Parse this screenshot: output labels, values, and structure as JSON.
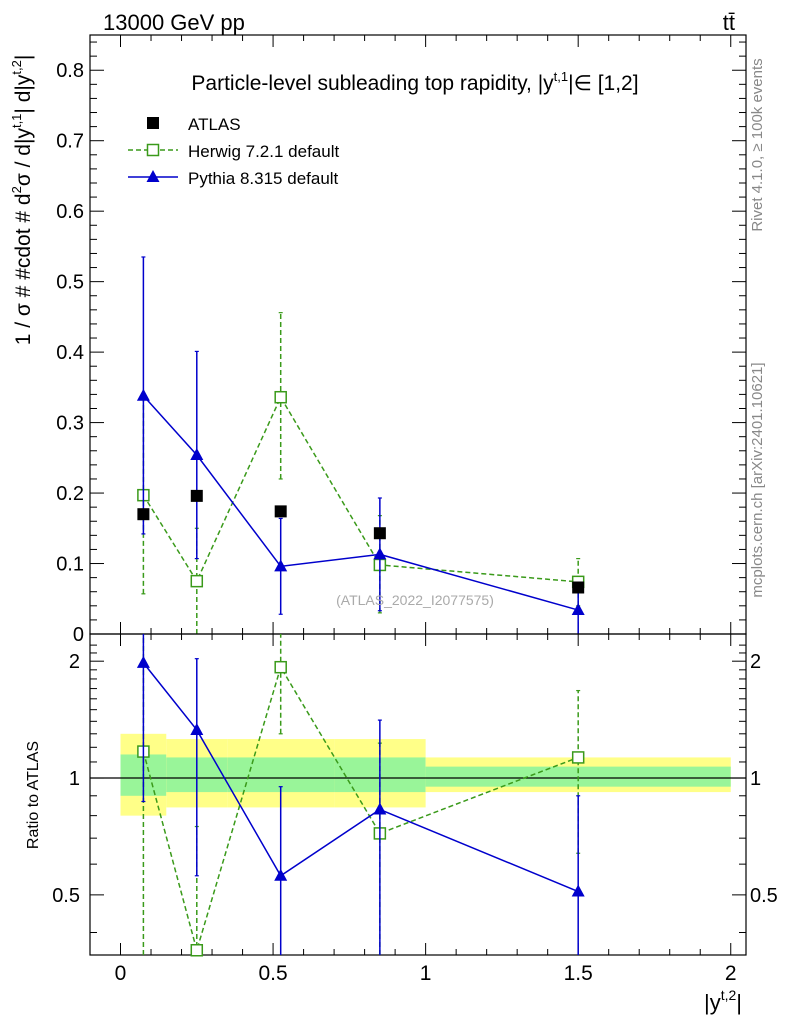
{
  "header": {
    "energy_label": "13000 GeV pp",
    "process_label": "tt̄"
  },
  "side_labels": {
    "rivet": "Rivet 4.1.0, ≥ 100k events",
    "mcplots": "mcplots.cern.ch [arXiv:2401.10621]"
  },
  "watermark": "(ATLAS_2022_I2077575)",
  "colors": {
    "atlas": "#000000",
    "herwig": "#3a9a1a",
    "pythia": "#0000cc",
    "band_inner": "#99f599",
    "band_outer": "#ffff88"
  },
  "chart_data": [
    {
      "type": "scatter",
      "title": "Particle-level subleading top rapidity, |y^{t,1}| ∈ [1,2]",
      "title_main": "Particle-level subleading top rapidity, |y",
      "title_sup": "t,1",
      "title_tail": "|∈ [1,2]",
      "ylabel": "1 / σ # #cdot # d²σ / d|y^{t,1}| d|y^{t,2}|",
      "ylabel_parts": [
        "1 / σ # #cdot # d",
        "2",
        "σ / d|y",
        "t,1",
        "| d|y",
        "t,2",
        "|"
      ],
      "xlim": [
        -0.1,
        2.05
      ],
      "ylim": [
        0,
        0.85
      ],
      "yticks": [
        0,
        0.1,
        0.2,
        0.3,
        0.4,
        0.5,
        0.6,
        0.7,
        0.8
      ],
      "ytick_labels": [
        "0",
        "0.1",
        "0.2",
        "0.3",
        "0.4",
        "0.5",
        "0.6",
        "0.7",
        "0.8"
      ],
      "legend": [
        {
          "key": "atlas",
          "label": "ATLAS"
        },
        {
          "key": "herwig",
          "label": "Herwig 7.2.1 default"
        },
        {
          "key": "pythia",
          "label": "Pythia 8.315 default"
        }
      ],
      "series": [
        {
          "name": "ATLAS",
          "key": "atlas",
          "x": [
            0.075,
            0.25,
            0.525,
            0.85,
            1.5
          ],
          "y": [
            0.17,
            0.196,
            0.174,
            0.143,
            0.066
          ],
          "err": [
            0.006,
            0.006,
            0.006,
            0.006,
            0.005
          ]
        },
        {
          "name": "Herwig 7.2.1 default",
          "key": "herwig",
          "x": [
            0.075,
            0.25,
            0.525,
            0.85,
            1.5
          ],
          "y": [
            0.197,
            0.075,
            0.336,
            0.098,
            0.074
          ],
          "ylo": [
            0.057,
            0,
            0.22,
            0.03,
            0.04
          ],
          "yhi": [
            0.335,
            0.15,
            0.456,
            0.168,
            0.107
          ]
        },
        {
          "name": "Pythia 8.315 default",
          "key": "pythia",
          "x": [
            0.075,
            0.25,
            0.525,
            0.85,
            1.5
          ],
          "y": [
            0.338,
            0.254,
            0.096,
            0.113,
            0.034
          ],
          "ylo": [
            0.142,
            0.107,
            0.028,
            0.033,
            0
          ],
          "yhi": [
            0.535,
            0.401,
            0.164,
            0.193,
            0.066
          ]
        }
      ]
    },
    {
      "type": "scatter",
      "title": "",
      "ylabel": "Ratio to ATLAS",
      "xlabel": "|y^{t,2}|",
      "xlabel_main": "|y",
      "xlabel_sup": "t,2",
      "xlabel_tail": "|",
      "xlim": [
        -0.1,
        2.05
      ],
      "ylim": [
        0.35,
        2.35
      ],
      "xticks": [
        0,
        0.5,
        1,
        1.5,
        2
      ],
      "xtick_labels": [
        "0",
        "0.5",
        "1",
        "1.5",
        "2"
      ],
      "yticks": [
        0.5,
        1,
        2
      ],
      "ytick_labels": [
        "0.5",
        "1",
        "2"
      ],
      "bins": [
        {
          "x0": 0,
          "x1": 0.15,
          "inner": [
            0.9,
            1.15
          ],
          "outer": [
            0.8,
            1.3
          ]
        },
        {
          "x0": 0.15,
          "x1": 0.35,
          "inner": [
            0.92,
            1.13
          ],
          "outer": [
            0.84,
            1.26
          ]
        },
        {
          "x0": 0.35,
          "x1": 0.7,
          "inner": [
            0.92,
            1.13
          ],
          "outer": [
            0.84,
            1.26
          ]
        },
        {
          "x0": 0.7,
          "x1": 1.0,
          "inner": [
            0.92,
            1.13
          ],
          "outer": [
            0.84,
            1.26
          ]
        },
        {
          "x0": 1.0,
          "x1": 2.0,
          "inner": [
            0.95,
            1.07
          ],
          "outer": [
            0.92,
            1.13
          ]
        }
      ],
      "series": [
        {
          "name": "Herwig 7.2.1 default",
          "key": "herwig",
          "x": [
            0.075,
            0.25,
            0.525,
            0.85,
            1.5
          ],
          "y": [
            1.17,
            0.36,
            1.93,
            0.72,
            1.13
          ],
          "ylo": [
            0.3,
            0.3,
            1.3,
            0.3,
            0.64
          ],
          "yhi": [
            2.35,
            0.75,
            2.35,
            1.23,
            1.68
          ]
        },
        {
          "name": "Pythia 8.315 default",
          "key": "pythia",
          "x": [
            0.075,
            0.25,
            0.525,
            0.85,
            1.5
          ],
          "y": [
            1.98,
            1.33,
            0.56,
            0.83,
            0.51
          ],
          "ylo": [
            0.87,
            0.56,
            0.3,
            0.3,
            0.3
          ],
          "yhi": [
            2.35,
            2.03,
            0.95,
            1.41,
            0.9
          ]
        }
      ]
    }
  ]
}
